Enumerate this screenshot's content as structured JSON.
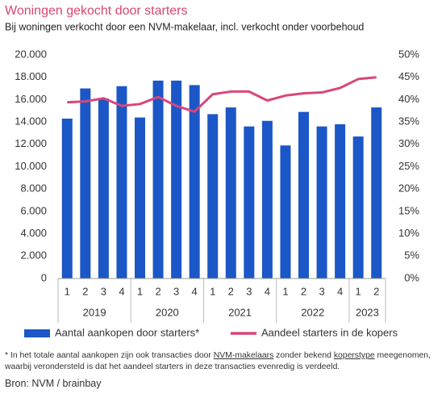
{
  "chart_data": {
    "type": "bar",
    "title": "Woningen gekocht door starters",
    "subtitle": "Bij woningen verkocht door een NVM-makelaar, incl. verkocht onder voorbehoud",
    "categories": [
      "1",
      "2",
      "3",
      "4",
      "1",
      "2",
      "3",
      "4",
      "1",
      "2",
      "3",
      "4",
      "1",
      "2",
      "3",
      "4",
      "1",
      "2"
    ],
    "year_groups": [
      {
        "label": "2019",
        "count": 4
      },
      {
        "label": "2020",
        "count": 4
      },
      {
        "label": "2021",
        "count": 4
      },
      {
        "label": "2022",
        "count": 4
      },
      {
        "label": "2023",
        "count": 2
      }
    ],
    "series": [
      {
        "name": "Aantal aankopen door starters*",
        "type": "bar",
        "color": "#1b57c6",
        "values": [
          14300,
          17000,
          16100,
          17200,
          14400,
          17700,
          17700,
          17300,
          14700,
          15300,
          13600,
          14100,
          11900,
          14900,
          13600,
          13800,
          12700,
          15300
        ]
      },
      {
        "name": "Aandeel starters in de kopers",
        "type": "line",
        "axis": "y2",
        "color": "#d9467a",
        "values": [
          39.4,
          39.6,
          40.3,
          38.6,
          39.0,
          40.6,
          38.6,
          37.3,
          41.2,
          41.8,
          41.8,
          39.8,
          40.9,
          41.4,
          41.6,
          42.6,
          44.6,
          45.0
        ]
      }
    ],
    "ylim": [
      0,
      20000
    ],
    "yticks": [
      {
        "value": 0,
        "label": "0"
      },
      {
        "value": 2000,
        "label": "2.000"
      },
      {
        "value": 4000,
        "label": "4.000"
      },
      {
        "value": 6000,
        "label": "6.000"
      },
      {
        "value": 8000,
        "label": "8.000"
      },
      {
        "value": 10000,
        "label": "10.000"
      },
      {
        "value": 12000,
        "label": "12.000"
      },
      {
        "value": 14000,
        "label": "14.000"
      },
      {
        "value": 16000,
        "label": "16.000"
      },
      {
        "value": 18000,
        "label": "18.000"
      },
      {
        "value": 20000,
        "label": "20.000"
      }
    ],
    "y2lim": [
      0,
      50
    ],
    "y2ticks": [
      {
        "value": 0,
        "label": "0%"
      },
      {
        "value": 5,
        "label": "5%"
      },
      {
        "value": 10,
        "label": "10%"
      },
      {
        "value": 15,
        "label": "15%"
      },
      {
        "value": 20,
        "label": "20%"
      },
      {
        "value": 25,
        "label": "25%"
      },
      {
        "value": 30,
        "label": "30%"
      },
      {
        "value": 35,
        "label": "35%"
      },
      {
        "value": 40,
        "label": "40%"
      },
      {
        "value": 45,
        "label": "45%"
      },
      {
        "value": 50,
        "label": "50%"
      }
    ],
    "grid": false,
    "footnote": [
      "* In het totale aantal aankopen zijn ook transacties door ",
      "NVM-makelaars",
      " zonder bekend ",
      "koperstype",
      " meegenomen, waarbij verondersteld is dat het aandeel starters in deze transacties evenredig is verdeeld."
    ],
    "source": "Bron: NVM / brainbay"
  }
}
